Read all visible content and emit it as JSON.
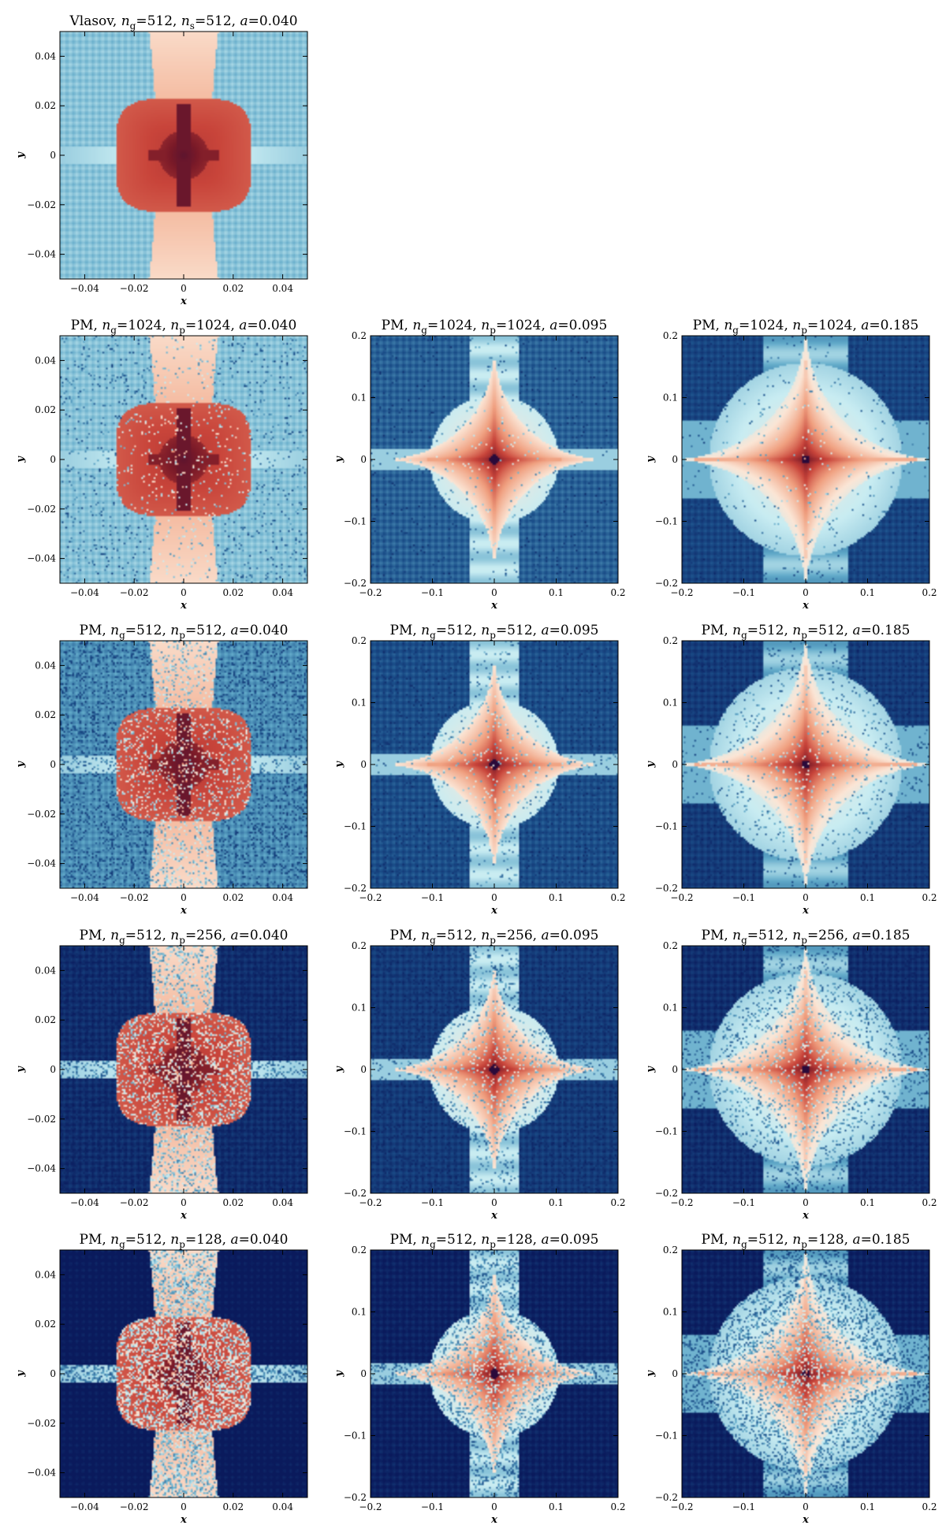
{
  "colors": {
    "cmap": [
      "#0a1a5c",
      "#1b4f8a",
      "#5fa8c8",
      "#c8ecf2",
      "#fbe6d6",
      "#f0a080",
      "#c8443a",
      "#7a1a28",
      "#2a0a3a"
    ]
  },
  "chart_data": [
    {
      "type": "heatmap",
      "row": 0,
      "col": 0,
      "title": "Vlasov, n_g=512, n_s=512, a=0.040",
      "title_parts": {
        "prefix": "Vlasov, ",
        "v1_sym": "n",
        "v1_sub": "g",
        "v1": "=512, ",
        "v2_sym": "n",
        "v2_sub": "s",
        "v2": "=512, ",
        "a_sym": "a",
        "a": "=0.040"
      },
      "xlabel": "x",
      "ylabel": "y",
      "xlim": [
        -0.05,
        0.05
      ],
      "ylim": [
        -0.05,
        0.05
      ],
      "xticks": [
        "−0.04",
        "−0.02",
        "0",
        "0.02",
        "0.04"
      ],
      "yticks": [
        "0.04",
        "0.02",
        "0",
        "−0.02",
        "−0.04"
      ],
      "style": "early",
      "noise": 0.0,
      "bg": 0.3
    },
    {
      "type": "heatmap",
      "row": 1,
      "col": 0,
      "title": "PM, n_g=1024, n_p=1024, a=0.040",
      "title_parts": {
        "prefix": "PM, ",
        "v1_sym": "n",
        "v1_sub": "g",
        "v1": "=1024, ",
        "v2_sym": "n",
        "v2_sub": "p",
        "v2": "=1024, ",
        "a_sym": "a",
        "a": "=0.040"
      },
      "xlabel": "x",
      "ylabel": "y",
      "xlim": [
        -0.05,
        0.05
      ],
      "ylim": [
        -0.05,
        0.05
      ],
      "xticks": [
        "−0.04",
        "−0.02",
        "0",
        "0.02",
        "0.04"
      ],
      "yticks": [
        "0.04",
        "0.02",
        "0",
        "−0.02",
        "−0.04"
      ],
      "style": "early",
      "noise": 0.1,
      "bg": 0.3
    },
    {
      "type": "heatmap",
      "row": 1,
      "col": 1,
      "title": "PM, n_g=1024, n_p=1024, a=0.095",
      "title_parts": {
        "prefix": "PM, ",
        "v1_sym": "n",
        "v1_sub": "g",
        "v1": "=1024, ",
        "v2_sym": "n",
        "v2_sub": "p",
        "v2": "=1024, ",
        "a_sym": "a",
        "a": "=0.095"
      },
      "xlabel": "x",
      "ylabel": "y",
      "xlim": [
        -0.2,
        0.2
      ],
      "ylim": [
        -0.2,
        0.2
      ],
      "xticks": [
        "−0.2",
        "−0.1",
        "0",
        "0.1",
        "0.2"
      ],
      "yticks": [
        "0.2",
        "0.1",
        "0",
        "−0.1",
        "−0.2"
      ],
      "style": "mid",
      "noise": 0.05,
      "bg": 0.15
    },
    {
      "type": "heatmap",
      "row": 1,
      "col": 2,
      "title": "PM, n_g=1024, n_p=1024, a=0.185",
      "title_parts": {
        "prefix": "PM, ",
        "v1_sym": "n",
        "v1_sub": "g",
        "v1": "=1024, ",
        "v2_sym": "n",
        "v2_sub": "p",
        "v2": "=1024, ",
        "a_sym": "a",
        "a": "=0.185"
      },
      "xlabel": "x",
      "ylabel": "y",
      "xlim": [
        -0.2,
        0.2
      ],
      "ylim": [
        -0.2,
        0.2
      ],
      "xticks": [
        "−0.2",
        "−0.1",
        "0",
        "0.1",
        "0.2"
      ],
      "yticks": [
        "0.2",
        "0.1",
        "0",
        "−0.1",
        "−0.2"
      ],
      "style": "late",
      "noise": 0.05,
      "bg": 0.1
    },
    {
      "type": "heatmap",
      "row": 2,
      "col": 0,
      "title": "PM, n_g=512, n_p=512, a=0.040",
      "title_parts": {
        "prefix": "PM, ",
        "v1_sym": "n",
        "v1_sub": "g",
        "v1": "=512, ",
        "v2_sym": "n",
        "v2_sub": "p",
        "v2": "=512, ",
        "a_sym": "a",
        "a": "=0.040"
      },
      "xlabel": "x",
      "ylabel": "y",
      "xlim": [
        -0.05,
        0.05
      ],
      "ylim": [
        -0.05,
        0.05
      ],
      "xticks": [
        "−0.04",
        "−0.02",
        "0",
        "0.02",
        "0.04"
      ],
      "yticks": [
        "0.04",
        "0.02",
        "0",
        "−0.02",
        "−0.04"
      ],
      "style": "early",
      "noise": 0.35,
      "bg": 0.22
    },
    {
      "type": "heatmap",
      "row": 2,
      "col": 1,
      "title": "PM, n_g=512, n_p=512, a=0.095",
      "title_parts": {
        "prefix": "PM, ",
        "v1_sym": "n",
        "v1_sub": "g",
        "v1": "=512, ",
        "v2_sym": "n",
        "v2_sub": "p",
        "v2": "=512, ",
        "a_sym": "a",
        "a": "=0.095"
      },
      "xlabel": "x",
      "ylabel": "y",
      "xlim": [
        -0.2,
        0.2
      ],
      "ylim": [
        -0.2,
        0.2
      ],
      "xticks": [
        "−0.2",
        "−0.1",
        "0",
        "0.1",
        "0.2"
      ],
      "yticks": [
        "0.2",
        "0.1",
        "0",
        "−0.1",
        "−0.2"
      ],
      "style": "mid",
      "noise": 0.12,
      "bg": 0.12
    },
    {
      "type": "heatmap",
      "row": 2,
      "col": 2,
      "title": "PM, n_g=512, n_p=512, a=0.185",
      "title_parts": {
        "prefix": "PM, ",
        "v1_sym": "n",
        "v1_sub": "g",
        "v1": "=512, ",
        "v2_sym": "n",
        "v2_sub": "p",
        "v2": "=512, ",
        "a_sym": "a",
        "a": "=0.185"
      },
      "xlabel": "x",
      "ylabel": "y",
      "xlim": [
        -0.2,
        0.2
      ],
      "ylim": [
        -0.2,
        0.2
      ],
      "xticks": [
        "−0.2",
        "−0.1",
        "0",
        "0.1",
        "0.2"
      ],
      "yticks": [
        "0.2",
        "0.1",
        "0",
        "−0.1",
        "−0.2"
      ],
      "style": "late",
      "noise": 0.12,
      "bg": 0.08
    },
    {
      "type": "heatmap",
      "row": 3,
      "col": 0,
      "title": "PM, n_g=512, n_p=256, a=0.040",
      "title_parts": {
        "prefix": "PM, ",
        "v1_sym": "n",
        "v1_sub": "g",
        "v1": "=512, ",
        "v2_sym": "n",
        "v2_sub": "p",
        "v2": "=256, ",
        "a_sym": "a",
        "a": "=0.040"
      },
      "xlabel": "x",
      "ylabel": "y",
      "xlim": [
        -0.05,
        0.05
      ],
      "ylim": [
        -0.05,
        0.05
      ],
      "xticks": [
        "−0.04",
        "−0.02",
        "0",
        "0.02",
        "0.04"
      ],
      "yticks": [
        "0.04",
        "0.02",
        "0",
        "−0.02",
        "−0.04"
      ],
      "style": "early",
      "noise": 0.5,
      "bg": 0.05
    },
    {
      "type": "heatmap",
      "row": 3,
      "col": 1,
      "title": "PM, n_g=512, n_p=256, a=0.095",
      "title_parts": {
        "prefix": "PM, ",
        "v1_sym": "n",
        "v1_sub": "g",
        "v1": "=512, ",
        "v2_sym": "n",
        "v2_sub": "p",
        "v2": "=256, ",
        "a_sym": "a",
        "a": "=0.095"
      },
      "xlabel": "x",
      "ylabel": "y",
      "xlim": [
        -0.2,
        0.2
      ],
      "ylim": [
        -0.2,
        0.2
      ],
      "xticks": [
        "−0.2",
        "−0.1",
        "0",
        "0.1",
        "0.2"
      ],
      "yticks": [
        "0.2",
        "0.1",
        "0",
        "−0.1",
        "−0.2"
      ],
      "style": "mid",
      "noise": 0.25,
      "bg": 0.08
    },
    {
      "type": "heatmap",
      "row": 3,
      "col": 2,
      "title": "PM, n_g=512, n_p=256, a=0.185",
      "title_parts": {
        "prefix": "PM, ",
        "v1_sym": "n",
        "v1_sub": "g",
        "v1": "=512, ",
        "v2_sym": "n",
        "v2_sub": "p",
        "v2": "=256, ",
        "a_sym": "a",
        "a": "=0.185"
      },
      "xlabel": "x",
      "ylabel": "y",
      "xlim": [
        -0.2,
        0.2
      ],
      "ylim": [
        -0.2,
        0.2
      ],
      "xticks": [
        "−0.2",
        "−0.1",
        "0",
        "0.1",
        "0.2"
      ],
      "yticks": [
        "0.2",
        "0.1",
        "0",
        "−0.1",
        "−0.2"
      ],
      "style": "late",
      "noise": 0.25,
      "bg": 0.05
    },
    {
      "type": "heatmap",
      "row": 4,
      "col": 0,
      "title": "PM, n_g=512, n_p=128, a=0.040",
      "title_parts": {
        "prefix": "PM, ",
        "v1_sym": "n",
        "v1_sub": "g",
        "v1": "=512, ",
        "v2_sym": "n",
        "v2_sub": "p",
        "v2": "=128, ",
        "a_sym": "a",
        "a": "=0.040"
      },
      "xlabel": "x",
      "ylabel": "y",
      "xlim": [
        -0.05,
        0.05
      ],
      "ylim": [
        -0.05,
        0.05
      ],
      "xticks": [
        "−0.04",
        "−0.02",
        "0",
        "0.02",
        "0.04"
      ],
      "yticks": [
        "0.04",
        "0.02",
        "0",
        "−0.02",
        "−0.04"
      ],
      "style": "early",
      "noise": 0.8,
      "bg": 0.0
    },
    {
      "type": "heatmap",
      "row": 4,
      "col": 1,
      "title": "PM, n_g=512, n_p=128, a=0.095",
      "title_parts": {
        "prefix": "PM, ",
        "v1_sym": "n",
        "v1_sub": "g",
        "v1": "=512, ",
        "v2_sym": "n",
        "v2_sub": "p",
        "v2": "=128, ",
        "a_sym": "a",
        "a": "=0.095"
      },
      "xlabel": "x",
      "ylabel": "y",
      "xlim": [
        -0.2,
        0.2
      ],
      "ylim": [
        -0.2,
        0.2
      ],
      "xticks": [
        "−0.2",
        "−0.1",
        "0",
        "0.1",
        "0.2"
      ],
      "yticks": [
        "0.2",
        "0.1",
        "0",
        "−0.1",
        "−0.2"
      ],
      "style": "mid",
      "noise": 0.5,
      "bg": 0.02
    },
    {
      "type": "heatmap",
      "row": 4,
      "col": 2,
      "title": "PM, n_g=512, n_p=128, a=0.185",
      "title_parts": {
        "prefix": "PM, ",
        "v1_sym": "n",
        "v1_sub": "g",
        "v1": "=512, ",
        "v2_sym": "n",
        "v2_sub": "p",
        "v2": "=128, ",
        "a_sym": "a",
        "a": "=0.185"
      },
      "xlabel": "x",
      "ylabel": "y",
      "xlim": [
        -0.2,
        0.2
      ],
      "ylim": [
        -0.2,
        0.2
      ],
      "xticks": [
        "−0.2",
        "−0.1",
        "0",
        "0.1",
        "0.2"
      ],
      "yticks": [
        "0.2",
        "0.1",
        "0",
        "−0.1",
        "−0.2"
      ],
      "style": "late",
      "noise": 0.5,
      "bg": 0.02
    }
  ]
}
